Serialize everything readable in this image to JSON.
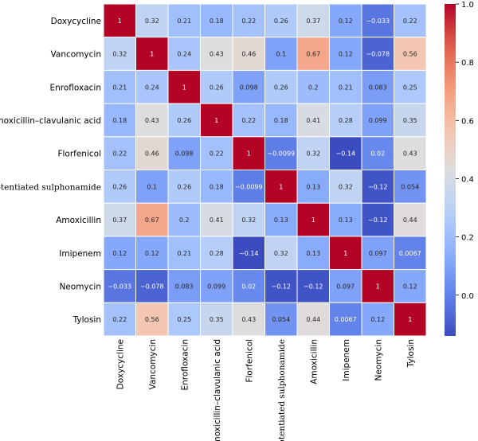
{
  "chart_data": {
    "type": "heatmap",
    "title": "",
    "xlabel": "",
    "ylabel": "",
    "labels": [
      "Doxycycline",
      "Vancomycin",
      "Enrofloxacin",
      "Amoxicillin–clavulanic acid",
      "Florfenicol",
      "Potentiated sulphonamide",
      "Amoxicillin",
      "Imipenem",
      "Neomycin",
      "Tylosin"
    ],
    "values": [
      [
        1,
        0.32,
        0.21,
        0.18,
        0.22,
        0.26,
        0.37,
        0.12,
        -0.033,
        0.22
      ],
      [
        0.32,
        1,
        0.24,
        0.43,
        0.46,
        0.1,
        0.67,
        0.12,
        -0.078,
        0.56
      ],
      [
        0.21,
        0.24,
        1,
        0.26,
        0.098,
        0.26,
        0.2,
        0.21,
        0.083,
        0.25
      ],
      [
        0.18,
        0.43,
        0.26,
        1,
        0.22,
        0.18,
        0.41,
        0.28,
        0.099,
        0.35
      ],
      [
        0.22,
        0.46,
        0.098,
        0.22,
        1,
        -0.0099,
        0.32,
        -0.14,
        0.02,
        0.43
      ],
      [
        0.26,
        0.1,
        0.26,
        0.18,
        -0.0099,
        1,
        0.13,
        0.32,
        -0.12,
        0.054
      ],
      [
        0.37,
        0.67,
        0.2,
        0.41,
        0.32,
        0.13,
        1,
        0.13,
        -0.12,
        0.44
      ],
      [
        0.12,
        0.12,
        0.21,
        0.28,
        -0.14,
        0.32,
        0.13,
        1,
        0.097,
        0.0067
      ],
      [
        -0.033,
        -0.078,
        0.083,
        0.099,
        0.02,
        -0.12,
        -0.12,
        0.097,
        1,
        0.12
      ],
      [
        0.22,
        0.56,
        0.25,
        0.35,
        0.43,
        0.054,
        0.44,
        0.0067,
        0.12,
        1
      ]
    ],
    "cell_text": [
      [
        "1",
        "0.32",
        "0.21",
        "0.18",
        "0.22",
        "0.26",
        "0.37",
        "0.12",
        "−0.033",
        "0.22"
      ],
      [
        "0.32",
        "1",
        "0.24",
        "0.43",
        "0.46",
        "0.1",
        "0.67",
        "0.12",
        "−0.078",
        "0.56"
      ],
      [
        "0.21",
        "0.24",
        "1",
        "0.26",
        "0.098",
        "0.26",
        "0.2",
        "0.21",
        "0.083",
        "0.25"
      ],
      [
        "0.18",
        "0.43",
        "0.26",
        "1",
        "0.22",
        "0.18",
        "0.41",
        "0.28",
        "0.099",
        "0.35"
      ],
      [
        "0.22",
        "0.46",
        "0.098",
        "0.22",
        "1",
        "−0.0099",
        "0.32",
        "−0.14",
        "0.02",
        "0.43"
      ],
      [
        "0.26",
        "0.1",
        "0.26",
        "0.18",
        "−0.0099",
        "1",
        "0.13",
        "0.32",
        "−0.12",
        "0.054"
      ],
      [
        "0.37",
        "0.67",
        "0.2",
        "0.41",
        "0.32",
        "0.13",
        "1",
        "0.13",
        "−0.12",
        "0.44"
      ],
      [
        "0.12",
        "0.12",
        "0.21",
        "0.28",
        "−0.14",
        "0.32",
        "0.13",
        "1",
        "0.097",
        "0.0067"
      ],
      [
        "−0.033",
        "−0.078",
        "0.083",
        "0.099",
        "0.02",
        "−0.12",
        "−0.12",
        "0.097",
        "1",
        "0.12"
      ],
      [
        "0.22",
        "0.56",
        "0.25",
        "0.35",
        "0.43",
        "0.054",
        "0.44",
        "0.0067",
        "0.12",
        "1"
      ]
    ],
    "colormap": "coolwarm",
    "vmin": -0.14,
    "vmax": 1,
    "colorbar": {
      "ticks": [
        0.0,
        0.2,
        0.4,
        0.6,
        0.8,
        1.0
      ],
      "tick_labels": [
        "0.0",
        "0.2",
        "0.4",
        "0.6",
        "0.8",
        "1.0"
      ]
    },
    "grid": true
  }
}
